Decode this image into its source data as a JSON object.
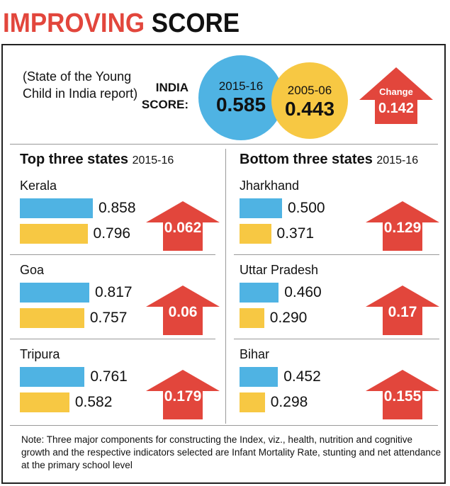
{
  "title": {
    "part1": "IMPROVING",
    "part2": "SCORE"
  },
  "subtitle": "(State of the Young Child in India report)",
  "india_label": "INDIA SCORE:",
  "colors": {
    "year_2015": "#4fb3e3",
    "year_2005": "#f7c843",
    "accent": "#e2463c"
  },
  "india": {
    "year_a": "2015-16",
    "value_a": "0.585",
    "year_b": "2005-06",
    "value_b": "0.443",
    "change_label": "Change",
    "change": "0.142"
  },
  "top": {
    "title": "Top three states",
    "year": "2015-16"
  },
  "bottom": {
    "title": "Bottom three states",
    "year": "2015-16"
  },
  "note": "Note: Three major components for constructing the Index, viz., health, nutrition and cognitive growth and the respective indicators selected are Infant Mortality Rate, stunting and net attendance at the primary school level",
  "chart_data": {
    "type": "bar",
    "series": [
      {
        "name": "2015-16"
      },
      {
        "name": "2005-06"
      }
    ],
    "top": [
      {
        "state": "Kerala",
        "v2015": 0.858,
        "v2005": 0.796,
        "change": "0.062"
      },
      {
        "state": "Goa",
        "v2015": 0.817,
        "v2005": 0.757,
        "change": "0.06"
      },
      {
        "state": "Tripura",
        "v2015": 0.761,
        "v2005": 0.582,
        "change": "0.179"
      }
    ],
    "bottom": [
      {
        "state": "Jharkhand",
        "v2015": 0.5,
        "v2005": 0.371,
        "change": "0.129"
      },
      {
        "state": "Uttar Pradesh",
        "v2015": 0.46,
        "v2005": 0.29,
        "change": "0.17"
      },
      {
        "state": "Bihar",
        "v2015": 0.452,
        "v2005": 0.298,
        "change": "0.155"
      }
    ]
  }
}
